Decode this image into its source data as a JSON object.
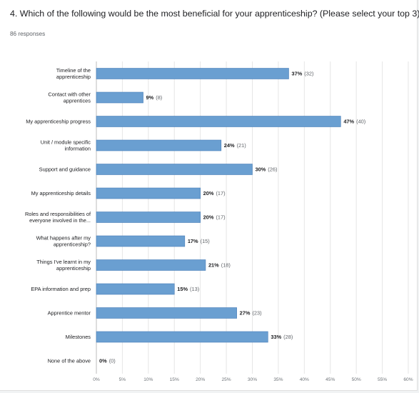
{
  "question": {
    "title": "4. Which of the following would be the most beneficial for your apprenticeship? (Please select your top 3)",
    "responses": "86 responses"
  },
  "chart_data": {
    "type": "bar",
    "orientation": "horizontal",
    "categories": [
      [
        "Timeline of the",
        "apprenticeship"
      ],
      [
        "Contact with other",
        "apprentices"
      ],
      [
        "My apprenticeship progress"
      ],
      [
        "Unit / module specific",
        "information"
      ],
      [
        "Support and guidance"
      ],
      [
        "My apprenticeship details"
      ],
      [
        "Roles and responsibilities of",
        "everyone involved in the..."
      ],
      [
        "What happens after my",
        "apprenticeship?"
      ],
      [
        "Things I've learnt in my",
        "apprenticeship"
      ],
      [
        "EPA information and prep"
      ],
      [
        "Apprentice mentor"
      ],
      [
        "Milestones"
      ],
      [
        "None of the above"
      ]
    ],
    "values": [
      37,
      9,
      47,
      24,
      30,
      20,
      20,
      17,
      21,
      15,
      27,
      33,
      0
    ],
    "value_labels": [
      "37%",
      "9%",
      "47%",
      "24%",
      "30%",
      "20%",
      "20%",
      "17%",
      "21%",
      "15%",
      "27%",
      "33%",
      "0%"
    ],
    "counts": [
      "(32)",
      "(8)",
      "(40)",
      "(21)",
      "(26)",
      "(17)",
      "(17)",
      "(15)",
      "(18)",
      "(13)",
      "(23)",
      "(28)",
      "(0)"
    ],
    "xticks": [
      0,
      5,
      10,
      15,
      20,
      25,
      30,
      35,
      40,
      45,
      50,
      55,
      60
    ],
    "xtick_labels": [
      "0%",
      "5%",
      "10%",
      "15%",
      "20%",
      "25%",
      "30%",
      "35%",
      "40%",
      "45%",
      "50%",
      "55%",
      "60%"
    ],
    "xlim": [
      0,
      60
    ],
    "grid": true,
    "bar_color": "#6a9fd1",
    "bar_border_color": "#4a7fb8"
  }
}
